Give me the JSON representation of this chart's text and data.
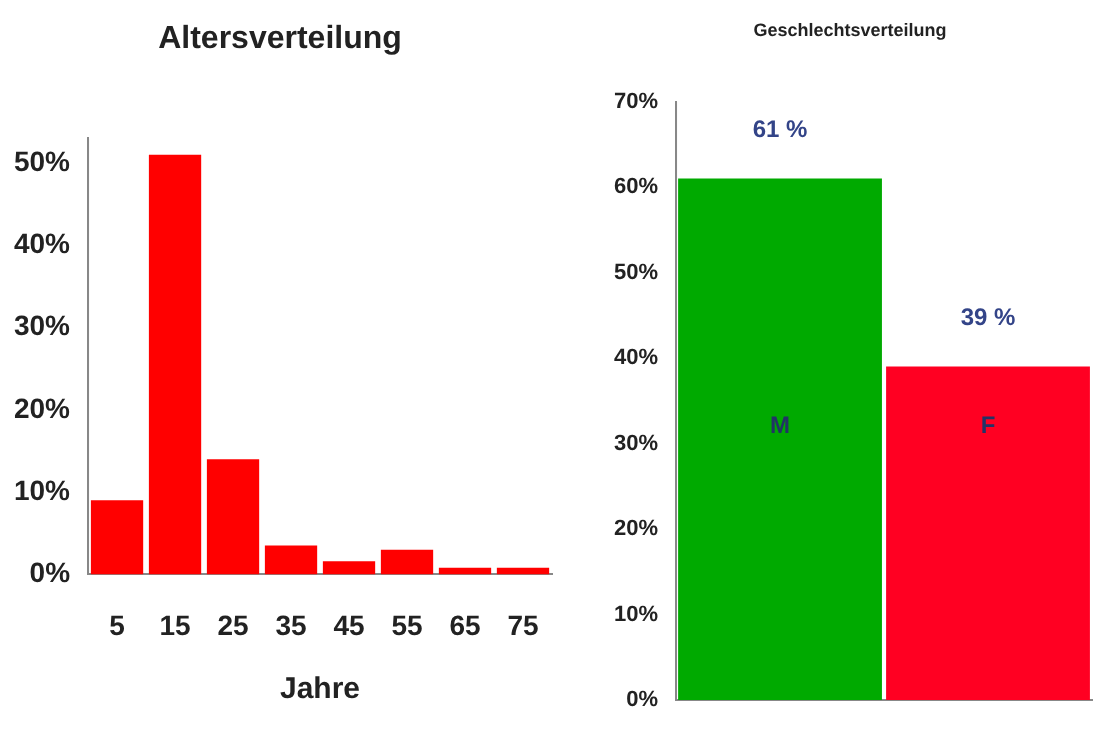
{
  "chart_data": [
    {
      "type": "bar",
      "title": "Altersverteilung",
      "xlabel": "Jahre",
      "categories": [
        "5",
        "15",
        "25",
        "35",
        "45",
        "55",
        "65",
        "75"
      ],
      "values": [
        9,
        51,
        14,
        3.5,
        1.6,
        3,
        0.8,
        0.8
      ],
      "color": "#ff0000",
      "ylim": [
        0,
        53
      ],
      "yticks": [
        {
          "value": 0,
          "label": "0%"
        },
        {
          "value": 10,
          "label": "10%"
        },
        {
          "value": 20,
          "label": "20%"
        },
        {
          "value": 30,
          "label": "30%"
        },
        {
          "value": 40,
          "label": "40%"
        },
        {
          "value": 50,
          "label": "50%"
        }
      ],
      "grid": false,
      "legend": false
    },
    {
      "type": "bar",
      "title": "Geschlechtsverteilung",
      "categories": [
        "M",
        "F"
      ],
      "values": [
        61,
        39
      ],
      "colors": [
        "#00aa00",
        "#ff0022"
      ],
      "value_labels": [
        "61 %",
        "39 %"
      ],
      "ylim": [
        0,
        70
      ],
      "yticks": [
        {
          "value": 0,
          "label": "0%"
        },
        {
          "value": 10,
          "label": "10%"
        },
        {
          "value": 20,
          "label": "20%"
        },
        {
          "value": 30,
          "label": "30%"
        },
        {
          "value": 40,
          "label": "40%"
        },
        {
          "value": 50,
          "label": "50%"
        },
        {
          "value": 60,
          "label": "60%"
        },
        {
          "value": 70,
          "label": "70%"
        }
      ],
      "grid": false,
      "legend": false,
      "tick_labels": "y"
    }
  ]
}
